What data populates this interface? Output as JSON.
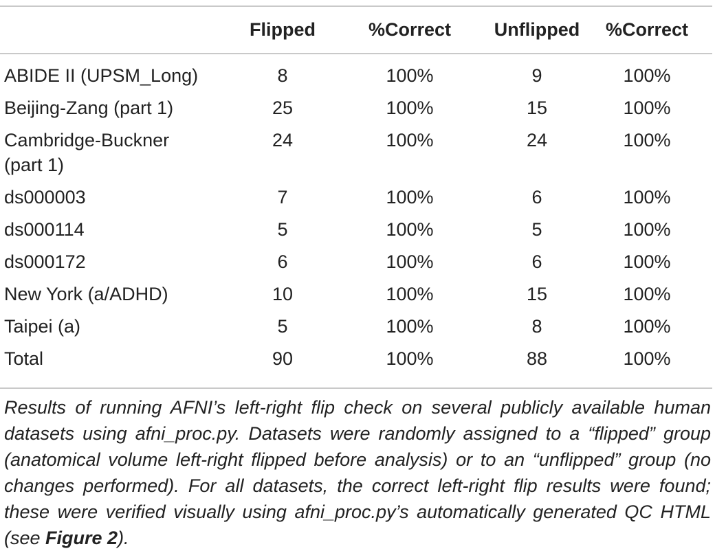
{
  "table": {
    "headers": [
      "",
      "Flipped",
      "%Correct",
      "Unflipped",
      "%Correct"
    ],
    "rows": [
      {
        "dataset": "ABIDE II (UPSM_Long)",
        "flipped": "8",
        "flipped_correct": "100%",
        "unflipped": "9",
        "unflipped_correct": "100%"
      },
      {
        "dataset": "Beijing-Zang (part 1)",
        "flipped": "25",
        "flipped_correct": "100%",
        "unflipped": "15",
        "unflipped_correct": "100%"
      },
      {
        "dataset": "Cambridge-Buckner",
        "dataset_line2": "(part 1)",
        "flipped": "24",
        "flipped_correct": "100%",
        "unflipped": "24",
        "unflipped_correct": "100%"
      },
      {
        "dataset": "ds000003",
        "flipped": "7",
        "flipped_correct": "100%",
        "unflipped": "6",
        "unflipped_correct": "100%"
      },
      {
        "dataset": "ds000114",
        "flipped": "5",
        "flipped_correct": "100%",
        "unflipped": "5",
        "unflipped_correct": "100%"
      },
      {
        "dataset": "ds000172",
        "flipped": "6",
        "flipped_correct": "100%",
        "unflipped": "6",
        "unflipped_correct": "100%"
      },
      {
        "dataset": "New York (a/ADHD)",
        "flipped": "10",
        "flipped_correct": "100%",
        "unflipped": "15",
        "unflipped_correct": "100%"
      },
      {
        "dataset": "Taipei (a)",
        "flipped": "5",
        "flipped_correct": "100%",
        "unflipped": "8",
        "unflipped_correct": "100%"
      },
      {
        "dataset": "Total",
        "flipped": "90",
        "flipped_correct": "100%",
        "unflipped": "88",
        "unflipped_correct": "100%"
      }
    ]
  },
  "caption": {
    "text": "Results of running AFNI’s left-right flip check on several publicly available human datasets using afni_proc.py. Datasets were randomly assigned to a “flipped” group (anatomical volume left-right flipped before analysis) or to an “unflipped” group (no changes performed). For all datasets, the correct left-right flip results were found; these were verified visually using afni_proc.py’s automatically generated QC HTML (see ",
    "figure_ref": "Figure 2",
    "suffix": ")."
  }
}
